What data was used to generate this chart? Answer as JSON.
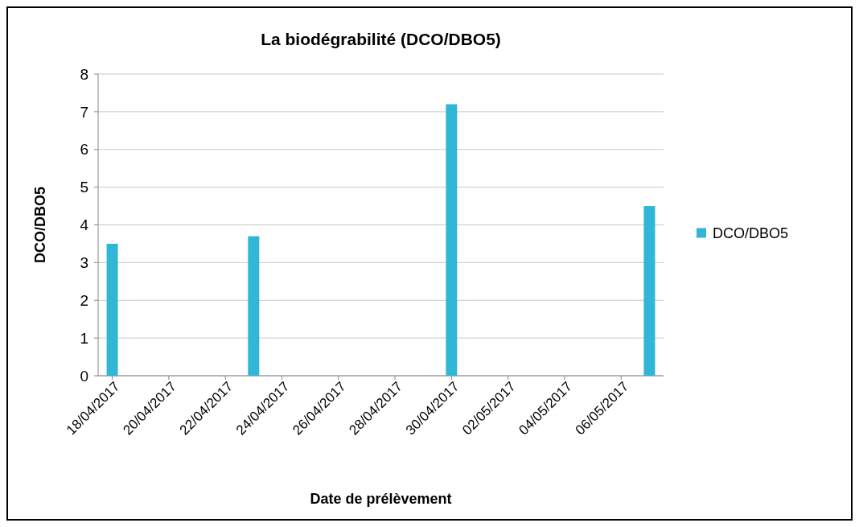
{
  "chart_data": {
    "type": "bar",
    "title": "La biodégrabilité (DCO/DBO5)",
    "xlabel": "Date de prélèvement",
    "ylabel": "DCO/DBO5",
    "x": [
      "2017-04-18",
      "2017-04-23",
      "2017-04-30",
      "2017-05-07"
    ],
    "series": [
      {
        "name": "DCO/DBO5",
        "color": "#31b6d6",
        "values": [
          3.5,
          3.7,
          7.2,
          4.5
        ]
      }
    ],
    "xlim": [
      "2017-04-17T12:00",
      "2017-05-07T12:00"
    ],
    "xticks": [
      {
        "value": "2017-04-18",
        "label": "18/04/2017"
      },
      {
        "value": "2017-04-20",
        "label": "20/04/2017"
      },
      {
        "value": "2017-04-22",
        "label": "22/04/2017"
      },
      {
        "value": "2017-04-24",
        "label": "24/04/2017"
      },
      {
        "value": "2017-04-26",
        "label": "26/04/2017"
      },
      {
        "value": "2017-04-28",
        "label": "28/04/2017"
      },
      {
        "value": "2017-04-30",
        "label": "30/04/2017"
      },
      {
        "value": "2017-05-02",
        "label": "02/05/2017"
      },
      {
        "value": "2017-05-04",
        "label": "04/05/2017"
      },
      {
        "value": "2017-05-06",
        "label": "06/05/2017"
      }
    ],
    "ylim": [
      0,
      8
    ],
    "yticks": [
      0,
      1,
      2,
      3,
      4,
      5,
      6,
      7,
      8
    ],
    "grid": "y",
    "legend": "right"
  }
}
